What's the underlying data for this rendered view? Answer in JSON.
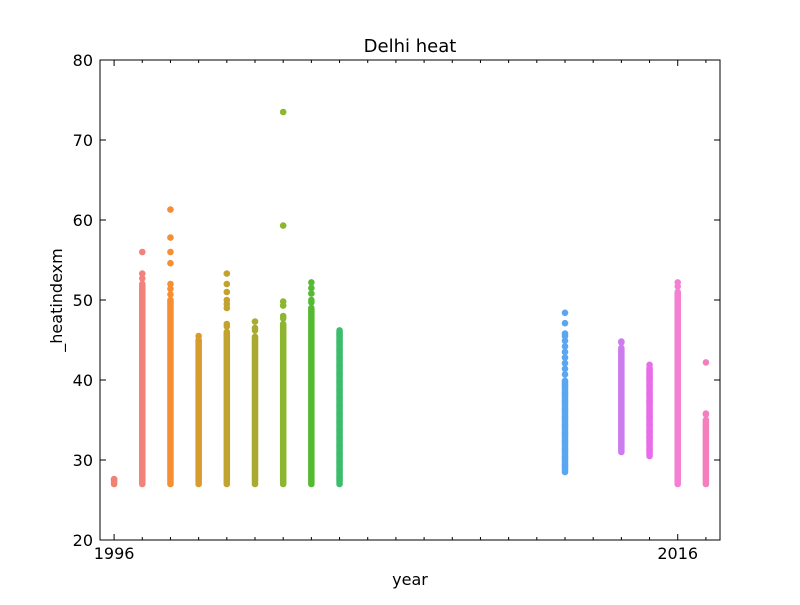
{
  "chart_data": {
    "type": "scatter",
    "title": "Delhi heat",
    "xlabel": "year",
    "ylabel": "_heatindexm",
    "xlim": [
      1995.5,
      2017.5
    ],
    "ylim": [
      20,
      80
    ],
    "x_ticks": [
      1996,
      2016
    ],
    "y_ticks": [
      20,
      30,
      40,
      50,
      60,
      70,
      80
    ],
    "grid": false,
    "series": [
      {
        "x": 1996,
        "color": "#f08274",
        "min": 27.0,
        "max": 27.6,
        "dense_max": 27.6,
        "outliers": []
      },
      {
        "x": 1997,
        "color": "#f2827b",
        "min": 27.0,
        "max": 53.3,
        "dense_max": 52.0,
        "outliers": [
          56.0
        ]
      },
      {
        "x": 1998,
        "color": "#f68f33",
        "min": 27.0,
        "max": 52.0,
        "dense_max": 50.0,
        "outliers": [
          61.3,
          57.8,
          56.0,
          54.6
        ]
      },
      {
        "x": 1999,
        "color": "#d89b2e",
        "min": 27.0,
        "max": 45.5,
        "dense_max": 45.0,
        "outliers": []
      },
      {
        "x": 2000,
        "color": "#c1a430",
        "min": 27.0,
        "max": 47.0,
        "dense_max": 46.0,
        "outliers": [
          53.3,
          52.0,
          51.0,
          50.0,
          49.5,
          49.0
        ]
      },
      {
        "x": 2001,
        "color": "#a9aa32",
        "min": 27.0,
        "max": 46.5,
        "dense_max": 45.5,
        "outliers": [
          47.3
        ]
      },
      {
        "x": 2002,
        "color": "#8db631",
        "min": 27.0,
        "max": 48.0,
        "dense_max": 47.0,
        "outliers": [
          73.5,
          59.3,
          49.8,
          49.3
        ]
      },
      {
        "x": 2003,
        "color": "#56b933",
        "min": 27.0,
        "max": 50.0,
        "dense_max": 49.0,
        "outliers": [
          52.2,
          51.5,
          50.8
        ]
      },
      {
        "x": 2004,
        "color": "#3cbc6d",
        "min": 27.0,
        "max": 46.2,
        "dense_max": 46.0,
        "outliers": []
      },
      {
        "x": 2012,
        "color": "#5aa6f0",
        "min": 28.5,
        "max": 45.5,
        "dense_max": 40.0,
        "outliers": [
          48.4,
          47.1,
          45.8
        ]
      },
      {
        "x": 2014,
        "color": "#cd7cf0",
        "min": 31.0,
        "max": 44.8,
        "dense_max": 44.0,
        "outliers": []
      },
      {
        "x": 2015,
        "color": "#e86de8",
        "min": 30.5,
        "max": 41.9,
        "dense_max": 41.5,
        "outliers": [
          40.5,
          37.4,
          35.5,
          34.5,
          33.6,
          32.8
        ]
      },
      {
        "x": 2016,
        "color": "#f57fd2",
        "min": 27.0,
        "max": 52.2,
        "dense_max": 51.0,
        "outliers": []
      },
      {
        "x": 2017,
        "color": "#f47fbd",
        "min": 27.0,
        "max": 35.8,
        "dense_max": 35.0,
        "outliers": [
          42.2
        ]
      }
    ]
  }
}
